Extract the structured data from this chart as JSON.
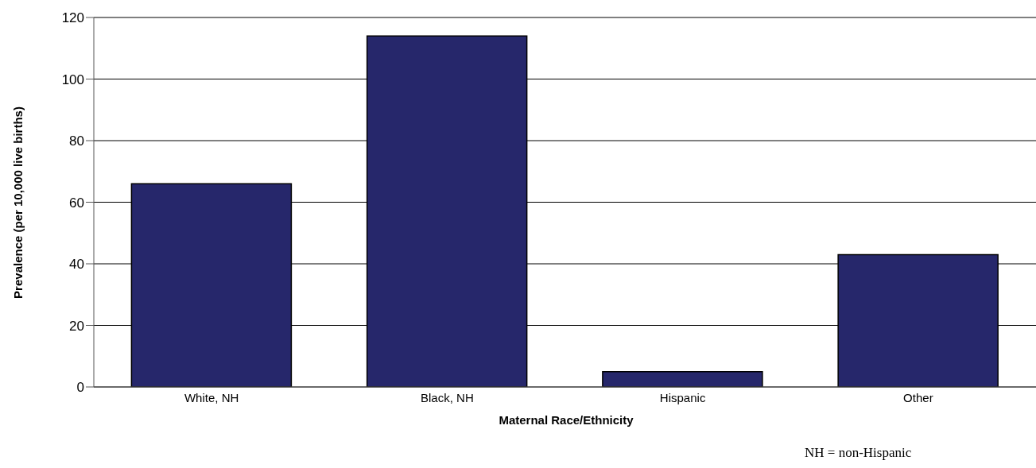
{
  "chart_data": {
    "type": "bar",
    "categories": [
      "White, NH",
      "Black, NH",
      "Hispanic",
      "Other"
    ],
    "values": [
      66,
      114,
      5,
      43
    ],
    "color": "#26276b",
    "xlabel": "Maternal Race/Ethnicity",
    "ylabel": "Prevalence (per 10,000 live births)",
    "ylim": [
      0,
      120
    ],
    "yticks": [
      0,
      20,
      40,
      60,
      80,
      100,
      120
    ],
    "grid": "y",
    "annotations": [
      "NH = non-Hispanic"
    ]
  }
}
